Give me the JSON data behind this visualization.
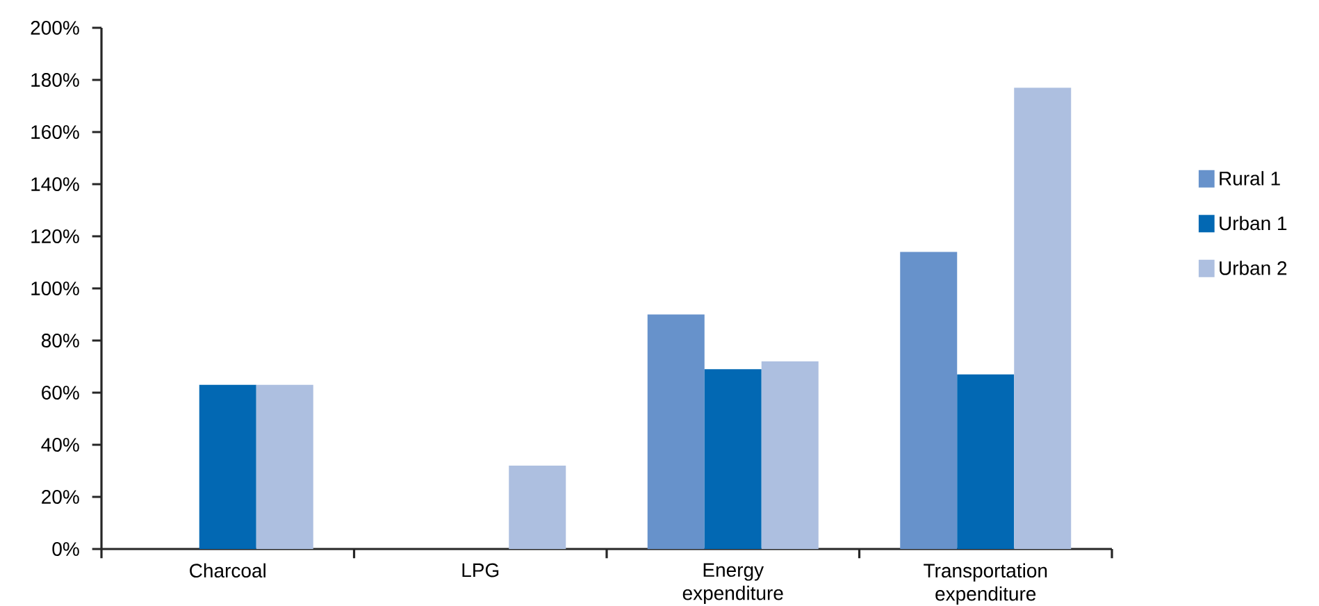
{
  "chart_data": {
    "type": "bar",
    "categories": [
      "Charcoal",
      "LPG",
      "Energy expenditure",
      "Transportation expenditure"
    ],
    "series": [
      {
        "name": "Rural 1",
        "color": "#6792cb",
        "values": [
          null,
          null,
          90,
          114
        ]
      },
      {
        "name": "Urban 1",
        "color": "#0268b3",
        "values": [
          63,
          null,
          69,
          67
        ]
      },
      {
        "name": "Urban 2",
        "color": "#adbfe0",
        "values": [
          63,
          32,
          72,
          177
        ]
      }
    ],
    "ylim": [
      0,
      200
    ],
    "yticks": [
      {
        "value": 0,
        "label": "0%"
      },
      {
        "value": 20,
        "label": "20%"
      },
      {
        "value": 40,
        "label": "40%"
      },
      {
        "value": 60,
        "label": "60%"
      },
      {
        "value": 80,
        "label": "80%"
      },
      {
        "value": 100,
        "label": "100%"
      },
      {
        "value": 120,
        "label": "120%"
      },
      {
        "value": 140,
        "label": "140%"
      },
      {
        "value": 160,
        "label": "160%"
      },
      {
        "value": 180,
        "label": "180%"
      },
      {
        "value": 200,
        "label": "200%"
      }
    ],
    "grid": false,
    "legend": "right"
  }
}
